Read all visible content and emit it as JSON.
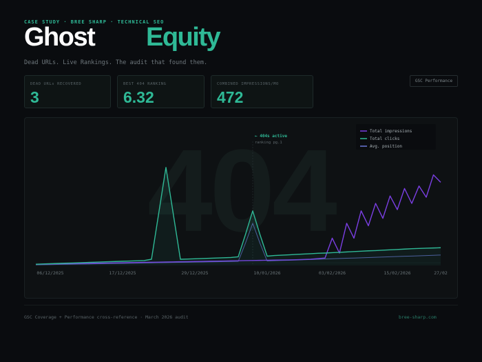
{
  "header": {
    "eyebrow": "CASE STUDY · BREE SHARP · TECHNICAL SEO",
    "title_main": "Ghost",
    "title_accent": "Equity",
    "subtitle": "Dead URLs. Live Rankings. The audit that found them."
  },
  "stats": [
    {
      "label": "DEAD URLs RECOVERED",
      "value": 3
    },
    {
      "label": "BEST 404 RANKING",
      "value": 6.32
    },
    {
      "label": "COMBINED IMPRESSIONS/MO",
      "value": 472
    }
  ],
  "button": "GSC Performance",
  "footer": {
    "note": "GSC Coverage + Performance cross-reference · March 2026 audit",
    "site": "bree-sharp.com"
  },
  "chart_data": {
    "type": "line",
    "watermark": "404",
    "annotation": {
      "text": "← 404s active",
      "subtext": "ranking pg.1"
    },
    "legend": "top-right",
    "ylim": [
      0,
      100
    ],
    "categories": [
      null,
      null,
      "06/12/2025",
      null,
      null,
      null,
      null,
      null,
      null,
      null,
      null,
      null,
      "17/12/2025",
      null,
      null,
      null,
      null,
      null,
      null,
      null,
      null,
      null,
      "29/12/2025",
      null,
      null,
      null,
      null,
      null,
      null,
      null,
      null,
      null,
      "10/01/2026",
      null,
      null,
      null,
      null,
      null,
      null,
      null,
      null,
      "03/02/2026",
      null,
      null,
      null,
      null,
      null,
      null,
      null,
      null,
      "15/02/2026",
      null,
      null,
      null,
      null,
      null,
      "27/02"
    ],
    "series": [
      {
        "name": "Total impressions",
        "color": "#7b3fe4",
        "values": [
          1,
          1,
          1.2,
          1.3,
          1.4,
          1.5,
          1.6,
          1.7,
          1.8,
          1.9,
          2,
          2.1,
          2.2,
          2.3,
          2.4,
          2.5,
          2.6,
          2.7,
          2.8,
          2.9,
          3,
          3.1,
          3.2,
          3.3,
          3.4,
          3.5,
          3.6,
          3.7,
          3.8,
          3.9,
          4,
          4.1,
          4.2,
          4.3,
          4.4,
          4.5,
          4.6,
          4.8,
          5,
          5.5,
          6,
          22,
          10,
          34,
          22,
          44,
          32,
          50,
          38,
          56,
          45,
          62,
          50,
          64,
          55,
          73,
          67
        ]
      },
      {
        "name": "Total clicks",
        "color": "#2fb996",
        "values": [
          1,
          1.2,
          1.4,
          1.6,
          1.8,
          2,
          2.2,
          2.4,
          2.6,
          2.8,
          3,
          3.2,
          3.4,
          3.6,
          3.8,
          4,
          5,
          42,
          79,
          42,
          5,
          5.2,
          5.4,
          5.6,
          5.8,
          6,
          6.2,
          6.4,
          7,
          25,
          44,
          25,
          7.5,
          8,
          8.3,
          8.6,
          8.9,
          9.2,
          9.5,
          9.8,
          10,
          10.3,
          10.6,
          10.9,
          11.2,
          11.5,
          11.8,
          12,
          12.3,
          12.6,
          12.9,
          13.2,
          13.5,
          13.7,
          13.9,
          14.1,
          14.3
        ]
      },
      {
        "name": "Avg. position",
        "color": "#6b78d8",
        "values": [
          0.5,
          0.6,
          0.7,
          0.8,
          0.9,
          1,
          1.1,
          1.2,
          1.3,
          1.4,
          1.5,
          1.6,
          1.7,
          1.8,
          1.9,
          2,
          2.1,
          2.2,
          2.3,
          2.4,
          2.5,
          2.6,
          2.7,
          2.8,
          2.9,
          3,
          3.1,
          3.2,
          3.3,
          18,
          34,
          18,
          3.6,
          3.8,
          4,
          4.2,
          4.4,
          4.6,
          4.8,
          5,
          5.2,
          5.4,
          5.6,
          5.8,
          6,
          6.2,
          6.4,
          6.6,
          6.8,
          7,
          7.2,
          7.4,
          7.6,
          7.8,
          8,
          8.2,
          8.4
        ]
      }
    ]
  }
}
